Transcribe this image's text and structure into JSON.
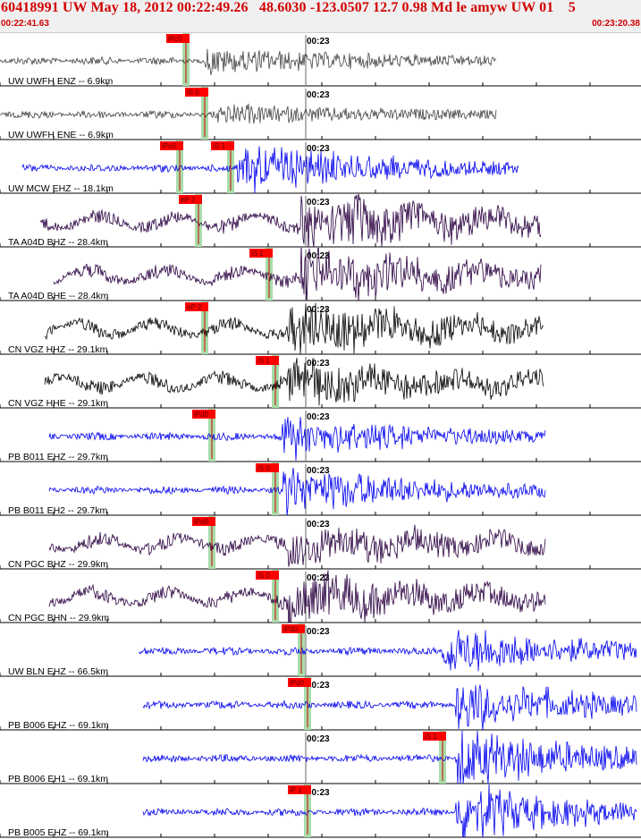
{
  "header": {
    "title": "60418991 UW May 18, 2012 00:22:49.26   48.6030 -123.0507 12.7 0.98 Md le amyw UW 01    5",
    "start_time": "00:22:41.63",
    "end_time": "00:23:20.38"
  },
  "colors": {
    "title_red": "#d00000",
    "pick_box": "#ff0000",
    "pick_line": "#cc0000",
    "pick_window": "#a8dca8",
    "trace_blue": "#0000ee",
    "trace_gray": "#444444",
    "trace_purple": "#2a0040",
    "trace_black": "#000000"
  },
  "minute_label": "00:23",
  "traces": [
    {
      "label": "UW UWFH ENZ -- 6.9km",
      "color": "gray",
      "picks": [
        {
          "label": "iPc0",
          "t": 0.29
        }
      ],
      "onset": 0.32,
      "amp": 0.22
    },
    {
      "label": "UW UWFH ENE -- 6.9km",
      "color": "gray",
      "picks": [
        {
          "label": "iS 0",
          "t": 0.32
        }
      ],
      "onset": 0.34,
      "amp": 0.14
    },
    {
      "label": "UW MCW EHZ -- 18.1km",
      "color": "blue",
      "picks": [
        {
          "label": "iPc0",
          "t": 0.28
        },
        {
          "label": "iS 1",
          "t": 0.36
        }
      ],
      "onset": 0.37,
      "amp": 0.45
    },
    {
      "label": "TA A04D BHZ -- 28.4km",
      "color": "purple",
      "picks": [
        {
          "label": "eP 2",
          "t": 0.31
        }
      ],
      "onset": 0.47,
      "amp": 0.55
    },
    {
      "label": "TA A04D BHE -- 28.4km",
      "color": "purple",
      "picks": [
        {
          "label": "iS 1",
          "t": 0.42
        }
      ],
      "onset": 0.47,
      "amp": 0.45
    },
    {
      "label": "CN VGZ HHZ -- 29.1km",
      "color": "black",
      "picks": [
        {
          "label": "eP 2",
          "t": 0.32
        }
      ],
      "onset": 0.45,
      "amp": 0.4
    },
    {
      "label": "CN VGZ HHE -- 29.1km",
      "color": "black",
      "picks": [
        {
          "label": "iS 1",
          "t": 0.43
        }
      ],
      "onset": 0.45,
      "amp": 0.35
    },
    {
      "label": "PB B011 EHZ -- 29.7km",
      "color": "blue",
      "picks": [
        {
          "label": "iPd0",
          "t": 0.33
        }
      ],
      "onset": 0.44,
      "amp": 0.35
    },
    {
      "label": "PB B011 EH2 -- 29.7km",
      "color": "blue",
      "picks": [
        {
          "label": "iS 0",
          "t": 0.43
        }
      ],
      "onset": 0.44,
      "amp": 0.45
    },
    {
      "label": "CN PGC BHZ -- 29.9km",
      "color": "purple",
      "picks": [
        {
          "label": "iPd0",
          "t": 0.33
        }
      ],
      "onset": 0.45,
      "amp": 0.3
    },
    {
      "label": "CN PGC BHN -- 29.9km",
      "color": "purple",
      "picks": [
        {
          "label": "iS 0",
          "t": 0.43
        }
      ],
      "onset": 0.45,
      "amp": 0.4
    },
    {
      "label": "UW BLN EHZ -- 66.5km",
      "color": "blue",
      "picks": [
        {
          "label": "iPd0",
          "t": 0.47
        }
      ],
      "onset": 0.69,
      "amp": 0.45
    },
    {
      "label": "PB B006 EHZ -- 69.1km",
      "color": "blue",
      "picks": [
        {
          "label": "iPd0",
          "t": 0.48
        }
      ],
      "onset": 0.71,
      "amp": 0.45
    },
    {
      "label": "PB B006 EH1 -- 69.1km",
      "color": "blue",
      "picks": [
        {
          "label": "iS 1",
          "t": 0.69
        }
      ],
      "onset": 0.71,
      "amp": 0.55
    },
    {
      "label": "PB B005 EHZ -- 69.1km",
      "color": "blue",
      "picks": [
        {
          "label": "iP 1",
          "t": 0.48
        }
      ],
      "onset": 0.71,
      "amp": 0.5
    }
  ]
}
